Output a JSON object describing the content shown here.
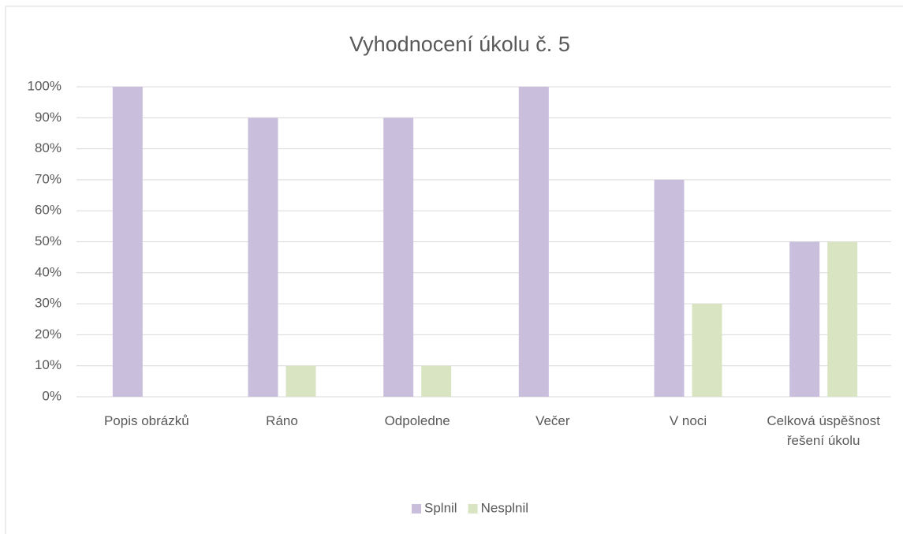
{
  "chart_data": {
    "type": "bar",
    "title": "Vyhodnocení úkolu  č. 5",
    "categories": [
      "Popis obrázků",
      "Ráno",
      "Odpoledne",
      "Večer",
      "V noci",
      "Celková úspěšnost řešení úkolu"
    ],
    "series": [
      {
        "name": "Splnil",
        "color": "#c9bfdc",
        "values": [
          100,
          90,
          90,
          100,
          70,
          50
        ]
      },
      {
        "name": "Nesplnil",
        "color": "#d9e5c2",
        "values": [
          0,
          10,
          10,
          0,
          30,
          50
        ]
      }
    ],
    "ylim": [
      0,
      100
    ],
    "yticks": [
      {
        "value": 0,
        "label": "0%"
      },
      {
        "value": 10,
        "label": "10%"
      },
      {
        "value": 20,
        "label": "20%"
      },
      {
        "value": 30,
        "label": "30%"
      },
      {
        "value": 40,
        "label": "40%"
      },
      {
        "value": 50,
        "label": "50%"
      },
      {
        "value": 60,
        "label": "60%"
      },
      {
        "value": 70,
        "label": "70%"
      },
      {
        "value": 80,
        "label": "80%"
      },
      {
        "value": 90,
        "label": "90%"
      },
      {
        "value": 100,
        "label": "100%"
      }
    ],
    "grid": true,
    "legend": "bottom"
  }
}
